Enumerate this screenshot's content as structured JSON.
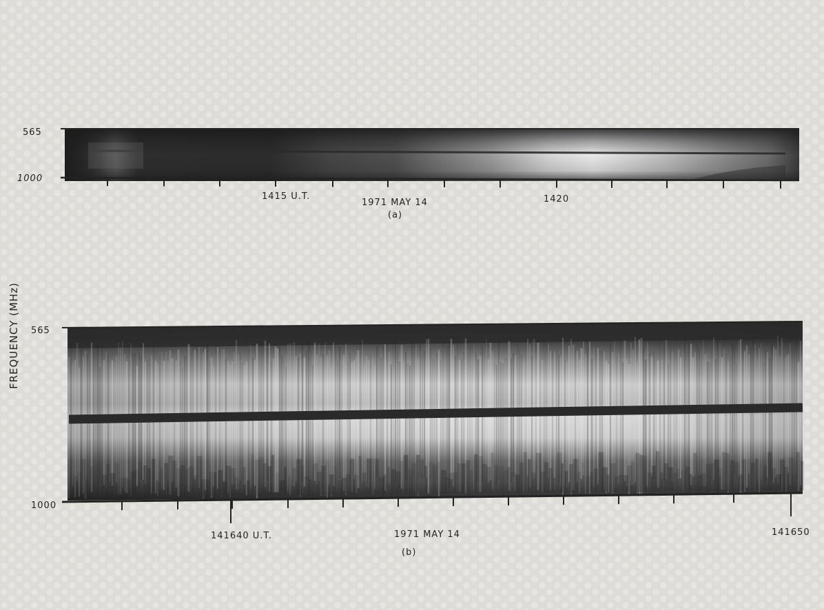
{
  "figure": {
    "y_axis_label": "FREQUENCY (MHz)",
    "panels": [
      {
        "id": "a",
        "caption": "(a)",
        "freq_top_label": "565",
        "freq_bottom_label": "1000",
        "time_labels": [
          "1415 U.T.",
          "1971 MAY 14",
          "1420"
        ]
      },
      {
        "id": "b",
        "caption": "(b)",
        "freq_top_label": "565",
        "freq_bottom_label": "1000",
        "time_labels": [
          "141640 U.T.",
          "1971 MAY 14",
          "141650"
        ]
      }
    ]
  },
  "colors": {
    "paper": "#dddcd7",
    "ink": "#232323",
    "spectrogram_dark": "#2b2b2b",
    "spectrogram_light": "#f2f2f2"
  }
}
